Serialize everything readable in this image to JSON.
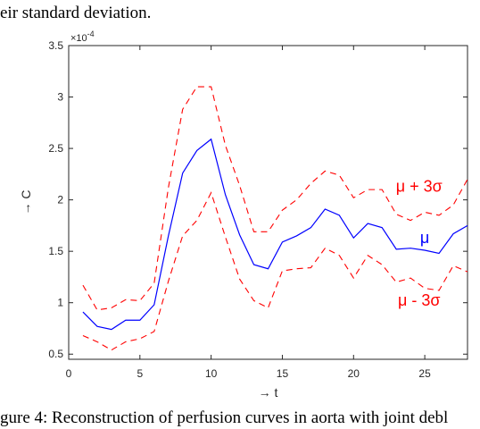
{
  "caption_top": "eir standard deviation.",
  "caption_bottom": "gure 4: Reconstruction of perfusion curves in aorta with joint debl",
  "chart_data": {
    "type": "line",
    "xlabel": "→ t",
    "ylabel": "→ C",
    "exponent_label": "×10",
    "exponent_power": "-4",
    "xlim": [
      0,
      28
    ],
    "ylim": [
      0.45,
      3.5
    ],
    "xticks": [
      0,
      5,
      10,
      15,
      20,
      25
    ],
    "xtick_labels": [
      "0",
      "5",
      "10",
      "15",
      "20",
      "25"
    ],
    "yticks": [
      0.5,
      1,
      1.5,
      2,
      2.5,
      3,
      3.5
    ],
    "ytick_labels": [
      "0.5",
      "1",
      "1.5",
      "2",
      "2.5",
      "3",
      "3.5"
    ],
    "x": [
      1,
      2,
      3,
      4,
      5,
      6,
      7,
      8,
      9,
      10,
      11,
      12,
      13,
      14,
      15,
      16,
      17,
      18,
      19,
      20,
      21,
      22,
      23,
      24,
      25,
      26,
      27,
      28
    ],
    "series": [
      {
        "name": "μ",
        "color": "#0000ff",
        "dash": "solid",
        "values": [
          0.91,
          0.77,
          0.74,
          0.83,
          0.83,
          0.98,
          1.65,
          2.26,
          2.48,
          2.59,
          2.05,
          1.66,
          1.37,
          1.33,
          1.59,
          1.65,
          1.73,
          1.91,
          1.85,
          1.63,
          1.77,
          1.73,
          1.52,
          1.53,
          1.51,
          1.48,
          1.67,
          1.75
        ]
      },
      {
        "name": "μ + 3σ",
        "color": "#ff0000",
        "dash": "dashed",
        "values": [
          1.17,
          0.93,
          0.95,
          1.03,
          1.02,
          1.19,
          2.12,
          2.88,
          3.1,
          3.1,
          2.53,
          2.14,
          1.69,
          1.69,
          1.9,
          2.0,
          2.16,
          2.28,
          2.24,
          2.02,
          2.1,
          2.1,
          1.86,
          1.8,
          1.88,
          1.85,
          1.95,
          2.2
        ]
      },
      {
        "name": "μ - 3σ",
        "color": "#ff0000",
        "dash": "dashed",
        "values": [
          0.68,
          0.62,
          0.54,
          0.62,
          0.65,
          0.72,
          1.21,
          1.65,
          1.8,
          2.07,
          1.64,
          1.23,
          1.02,
          0.95,
          1.31,
          1.33,
          1.34,
          1.53,
          1.46,
          1.24,
          1.46,
          1.37,
          1.2,
          1.24,
          1.14,
          1.12,
          1.36,
          1.3
        ]
      }
    ],
    "annotations": [
      {
        "text": "μ + 3σ",
        "color": "#ff0000",
        "x": 24.6,
        "y": 2.08
      },
      {
        "text": "μ",
        "color": "#0000ff",
        "x": 25.0,
        "y": 1.58
      },
      {
        "text": "μ - 3σ",
        "color": "#ff0000",
        "x": 24.6,
        "y": 0.97
      }
    ],
    "grid": false,
    "legend": "none"
  }
}
